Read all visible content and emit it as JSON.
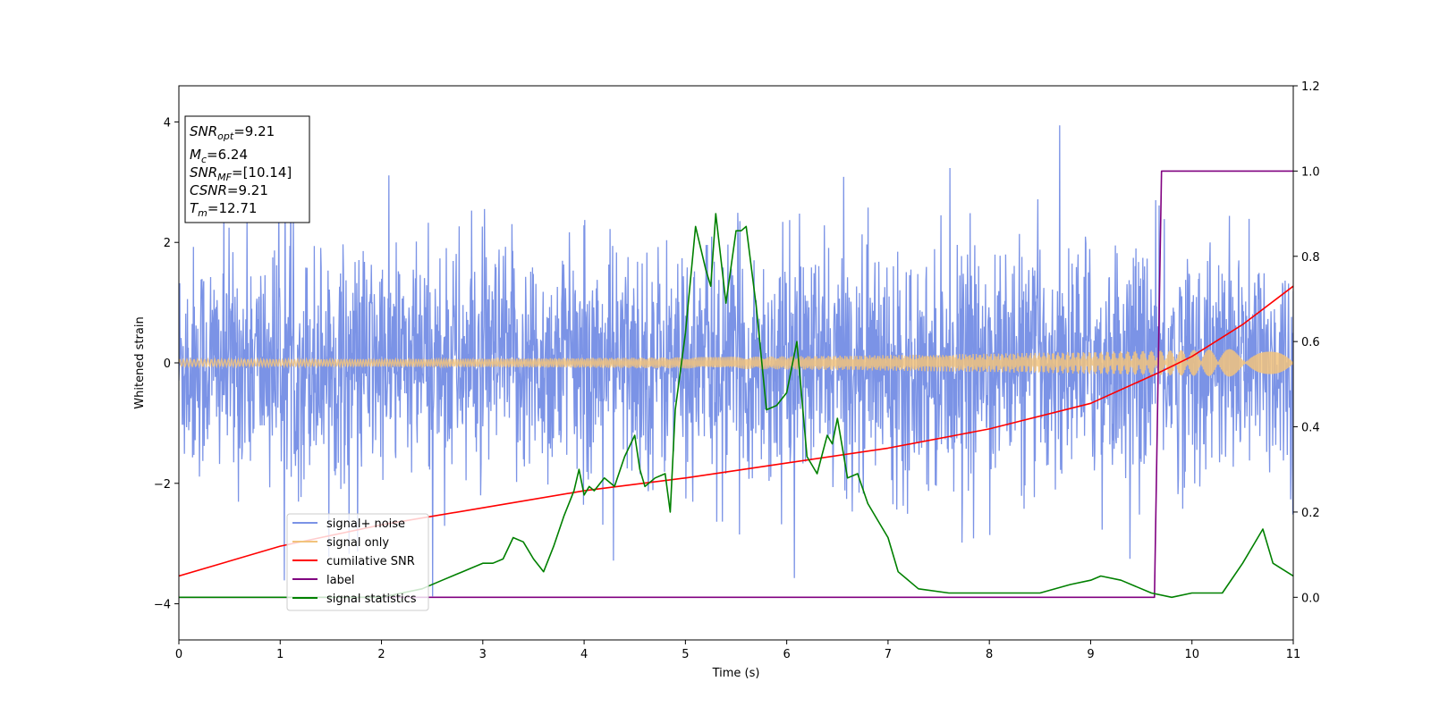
{
  "chart_data": {
    "type": "line",
    "xlabel": "Time (s)",
    "ylabel": "Whitened strain",
    "xlim": [
      0,
      11
    ],
    "ylim": [
      -4.6,
      4.6
    ],
    "y2lim": [
      -0.1,
      1.2
    ],
    "xticks": [
      "0",
      "1",
      "2",
      "3",
      "4",
      "5",
      "6",
      "7",
      "8",
      "9",
      "10",
      "11"
    ],
    "yticks": [
      "−4",
      "−2",
      "0",
      "2",
      "4"
    ],
    "y2ticks": [
      "0.0",
      "0.2",
      "0.4",
      "0.6",
      "0.8",
      "1.0",
      "1.2"
    ],
    "grid": false,
    "legend_position": "lower-left",
    "annotation_lines": [
      {
        "base": "SNR",
        "sub": "opt",
        "value": "=9.21"
      },
      {
        "base": "M",
        "sub": "c",
        "value": "=6.24"
      },
      {
        "base": "SNR",
        "sub": "MF",
        "value": "=[10.14]"
      },
      {
        "base": "CSNR",
        "sub": "",
        "value": "=9.21"
      },
      {
        "base": "T",
        "sub": "m",
        "value": "=12.71"
      }
    ],
    "series": [
      {
        "name": "signal+ noise",
        "color": "#7b93e6",
        "axis": "left",
        "noise_std": 0.95,
        "spread_approx": [
          -3.5,
          3.5
        ]
      },
      {
        "name": "signal only",
        "color": "#f2c37d",
        "axis": "left",
        "amplitude_start": 0.06,
        "amplitude_end": 0.25
      },
      {
        "name": "cumilative SNR",
        "color": "#ff0000",
        "axis": "right",
        "x": [
          0,
          1,
          2,
          3,
          4,
          5,
          6,
          7,
          8,
          9,
          9.7,
          10,
          10.5,
          11
        ],
        "y": [
          0.05,
          0.12,
          0.17,
          0.21,
          0.25,
          0.28,
          0.315,
          0.35,
          0.395,
          0.455,
          0.53,
          0.565,
          0.64,
          0.73
        ]
      },
      {
        "name": "label",
        "color": "#800080",
        "axis": "right",
        "x": [
          0,
          9.63,
          9.7,
          11
        ],
        "y": [
          0,
          0,
          1,
          1
        ]
      },
      {
        "name": "signal statistics",
        "color": "#008000",
        "axis": "right",
        "x": [
          0,
          0.5,
          1,
          1.5,
          2,
          2.4,
          2.6,
          2.8,
          3,
          3.1,
          3.2,
          3.3,
          3.4,
          3.5,
          3.6,
          3.7,
          3.8,
          3.9,
          3.95,
          4.0,
          4.05,
          4.1,
          4.2,
          4.3,
          4.4,
          4.5,
          4.55,
          4.6,
          4.7,
          4.8,
          4.85,
          4.9,
          5.0,
          5.1,
          5.2,
          5.25,
          5.3,
          5.4,
          5.5,
          5.55,
          5.6,
          5.7,
          5.8,
          5.9,
          6.0,
          6.1,
          6.2,
          6.3,
          6.4,
          6.45,
          6.5,
          6.6,
          6.7,
          6.8,
          6.9,
          7.0,
          7.1,
          7.3,
          7.6,
          8.0,
          8.5,
          8.8,
          9.0,
          9.1,
          9.3,
          9.6,
          9.8,
          10.0,
          10.3,
          10.5,
          10.6,
          10.7,
          10.8,
          11
        ],
        "y": [
          0.0,
          0.0,
          0.0,
          0.0,
          0.0,
          0.02,
          0.04,
          0.06,
          0.08,
          0.08,
          0.09,
          0.14,
          0.13,
          0.09,
          0.06,
          0.12,
          0.19,
          0.25,
          0.3,
          0.24,
          0.26,
          0.25,
          0.28,
          0.26,
          0.33,
          0.38,
          0.3,
          0.26,
          0.28,
          0.29,
          0.2,
          0.44,
          0.62,
          0.87,
          0.77,
          0.73,
          0.9,
          0.69,
          0.86,
          0.86,
          0.87,
          0.68,
          0.44,
          0.45,
          0.48,
          0.6,
          0.33,
          0.29,
          0.38,
          0.36,
          0.42,
          0.28,
          0.29,
          0.22,
          0.18,
          0.14,
          0.06,
          0.02,
          0.01,
          0.01,
          0.01,
          0.03,
          0.04,
          0.05,
          0.04,
          0.01,
          0.0,
          0.01,
          0.01,
          0.08,
          0.12,
          0.16,
          0.08,
          0.05
        ]
      }
    ]
  }
}
